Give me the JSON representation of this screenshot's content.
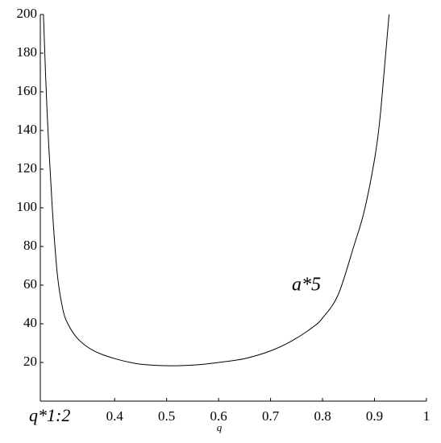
{
  "chart_data": {
    "type": "line",
    "x_label": "q",
    "annotation": "a*5",
    "x": [
      0.263,
      0.27,
      0.28,
      0.29,
      0.3,
      0.31,
      0.33,
      0.36,
      0.4,
      0.44,
      0.48,
      0.52,
      0.56,
      0.6,
      0.65,
      0.7,
      0.74,
      0.78,
      0.8,
      0.83,
      0.86,
      0.88,
      0.9,
      0.91,
      0.92,
      0.928
    ],
    "series": [
      {
        "color": "#000000",
        "values": [
          200,
          150,
          100,
          65,
          48,
          40,
          32,
          26,
          22,
          19.5,
          18.5,
          18.3,
          18.8,
          20,
          22,
          26,
          31,
          38,
          43,
          55,
          80,
          98,
          125,
          145,
          175,
          200
        ]
      }
    ],
    "xlim": [
      0.257,
      1
    ],
    "ylim": [
      0,
      200
    ],
    "xticks": [
      {
        "value": 0.257,
        "label": "q*1:2"
      },
      0.4,
      0.5,
      0.6,
      0.7,
      0.8,
      0.9,
      1
    ],
    "yticks": [
      20,
      40,
      60,
      80,
      100,
      120,
      140,
      160,
      180,
      200
    ]
  }
}
